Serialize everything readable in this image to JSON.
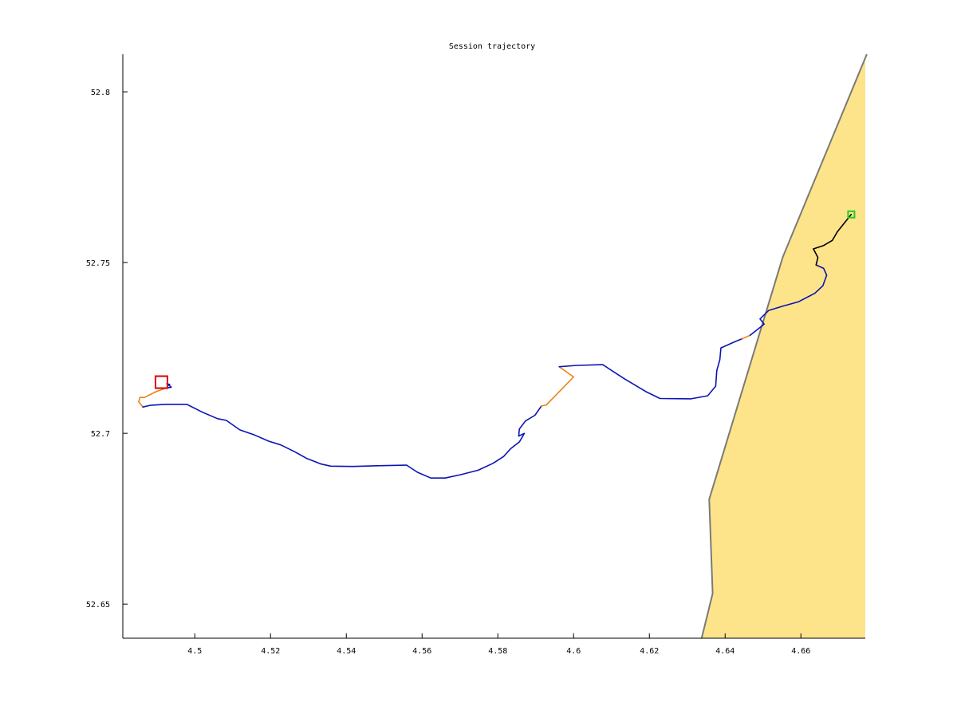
{
  "chart_data": {
    "type": "line",
    "title": "Session trajectory",
    "xlabel": "",
    "ylabel": "",
    "xlim": [
      4.481,
      4.677
    ],
    "ylim": [
      52.64,
      52.811
    ],
    "x_ticks": [
      4.5,
      4.52,
      4.54,
      4.56,
      4.58,
      4.6,
      4.62,
      4.64,
      4.66
    ],
    "x_tick_labels": [
      "4.5",
      "4.52",
      "4.54",
      "4.56",
      "4.58",
      "4.6",
      "4.62",
      "4.64",
      "4.66"
    ],
    "y_ticks": [
      52.65,
      52.7,
      52.75,
      52.8
    ],
    "y_tick_labels": [
      "52.65",
      "52.7",
      "52.75",
      "52.8"
    ],
    "grid": false,
    "land_polygon": {
      "color": "#fde48a",
      "edge_color": "#7a7a7a",
      "boundary": [
        [
          4.6338,
          52.64
        ],
        [
          4.6367,
          52.6531
        ],
        [
          4.6358,
          52.6807
        ],
        [
          4.6552,
          52.7516
        ],
        [
          4.6774,
          52.811
        ]
      ]
    },
    "start_marker": {
      "x": 4.4911,
      "y": 52.7151,
      "color": "#dd0000"
    },
    "end_marker": {
      "x": 4.6733,
      "y": 52.7641,
      "color": "#22cc22"
    },
    "series": [
      {
        "color": "#0b14b4",
        "points": [
          [
            4.4926,
            52.7145
          ],
          [
            4.4934,
            52.7143
          ],
          [
            4.493,
            52.7142
          ],
          [
            4.4938,
            52.7135
          ],
          [
            4.4925,
            52.7133
          ]
        ]
      },
      {
        "color": "#ee8011",
        "points": [
          [
            4.4925,
            52.7133
          ],
          [
            4.4898,
            52.7122
          ],
          [
            4.4867,
            52.7105
          ],
          [
            4.4855,
            52.7105
          ],
          [
            4.4852,
            52.7092
          ],
          [
            4.4863,
            52.7077
          ]
        ]
      },
      {
        "color": "#0b14b4",
        "points": [
          [
            4.4863,
            52.7077
          ],
          [
            4.4882,
            52.7082
          ],
          [
            4.4923,
            52.7085
          ],
          [
            4.4979,
            52.7085
          ],
          [
            4.5018,
            52.7063
          ],
          [
            4.506,
            52.7043
          ],
          [
            4.5083,
            52.7038
          ],
          [
            4.5119,
            52.701
          ],
          [
            4.5158,
            52.6995
          ],
          [
            4.5195,
            52.6977
          ],
          [
            4.5227,
            52.6966
          ],
          [
            4.5264,
            52.6946
          ],
          [
            4.5296,
            52.6926
          ],
          [
            4.5334,
            52.691
          ],
          [
            4.5359,
            52.6904
          ],
          [
            4.5417,
            52.6903
          ],
          [
            4.548,
            52.6905
          ],
          [
            4.5559,
            52.6907
          ],
          [
            4.5588,
            52.6886
          ],
          [
            4.5623,
            52.6869
          ],
          [
            4.5661,
            52.6869
          ],
          [
            4.5702,
            52.6879
          ],
          [
            4.5748,
            52.6892
          ],
          [
            4.5787,
            52.6912
          ],
          [
            4.5815,
            52.6932
          ],
          [
            4.5833,
            52.6954
          ],
          [
            4.5857,
            52.6975
          ],
          [
            4.587,
            52.7
          ],
          [
            4.5855,
            52.6992
          ],
          [
            4.5857,
            52.7013
          ],
          [
            4.5873,
            52.7036
          ],
          [
            4.5898,
            52.7053
          ],
          [
            4.5915,
            52.708
          ]
        ]
      },
      {
        "color": "#ee8011",
        "points": [
          [
            4.5915,
            52.708
          ],
          [
            4.5928,
            52.7083
          ],
          [
            4.6,
            52.7165
          ],
          [
            4.5981,
            52.718
          ],
          [
            4.5962,
            52.7195
          ]
        ]
      },
      {
        "color": "#0b14b4",
        "points": [
          [
            4.5962,
            52.7195
          ],
          [
            4.6009,
            52.7199
          ],
          [
            4.6077,
            52.7201
          ],
          [
            4.6135,
            52.7159
          ],
          [
            4.6193,
            52.7121
          ],
          [
            4.6228,
            52.7102
          ],
          [
            4.631,
            52.7101
          ],
          [
            4.6354,
            52.711
          ],
          [
            4.6375,
            52.7138
          ],
          [
            4.6378,
            52.7184
          ],
          [
            4.6386,
            52.7215
          ],
          [
            4.6389,
            52.725
          ],
          [
            4.6423,
            52.7267
          ],
          [
            4.6445,
            52.7277
          ]
        ]
      },
      {
        "color": "#ee8011",
        "points": [
          [
            4.6445,
            52.7277
          ],
          [
            4.6466,
            52.7287
          ]
        ]
      },
      {
        "color": "#0b14b4",
        "points": [
          [
            4.6466,
            52.7287
          ],
          [
            4.6492,
            52.731
          ],
          [
            4.6503,
            52.732
          ],
          [
            4.6492,
            52.7335
          ],
          [
            4.6515,
            52.736
          ],
          [
            4.6554,
            52.7373
          ],
          [
            4.6593,
            52.7385
          ],
          [
            4.6637,
            52.741
          ],
          [
            4.6658,
            52.7432
          ],
          [
            4.6668,
            52.7463
          ],
          [
            4.666,
            52.7483
          ],
          [
            4.664,
            52.7493
          ]
        ]
      },
      {
        "color": "#000000",
        "points": [
          [
            4.664,
            52.7493
          ],
          [
            4.6645,
            52.7515
          ],
          [
            4.6633,
            52.754
          ],
          [
            4.666,
            52.755
          ],
          [
            4.6683,
            52.7565
          ],
          [
            4.6696,
            52.759
          ],
          [
            4.6733,
            52.7641
          ]
        ]
      }
    ]
  }
}
